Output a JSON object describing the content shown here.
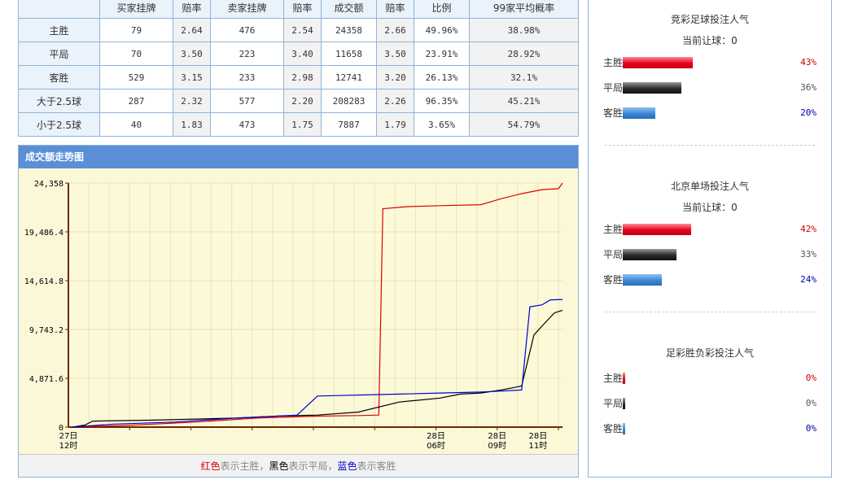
{
  "odds_table": {
    "headers": [
      "",
      "买家挂牌",
      "赔率",
      "卖家挂牌",
      "赔率",
      "成交额",
      "赔率",
      "比例",
      "99家平均概率"
    ],
    "rows": [
      [
        "主胜",
        "79",
        "2.64",
        "476",
        "2.54",
        "24358",
        "2.66",
        "49.96%",
        "38.98%"
      ],
      [
        "平局",
        "70",
        "3.50",
        "223",
        "3.40",
        "11658",
        "3.50",
        "23.91%",
        "28.92%"
      ],
      [
        "客胜",
        "529",
        "3.15",
        "233",
        "2.98",
        "12741",
        "3.20",
        "26.13%",
        "32.1%"
      ],
      [
        "大于2.5球",
        "287",
        "2.32",
        "577",
        "2.20",
        "208283",
        "2.26",
        "96.35%",
        "45.21%"
      ],
      [
        "小于2.5球",
        "40",
        "1.83",
        "473",
        "1.75",
        "7887",
        "1.79",
        "3.65%",
        "54.79%"
      ]
    ]
  },
  "trend": {
    "title": "成交额走势图",
    "legend": {
      "red": "红色",
      "t1": "表示主胜，",
      "black": "黑色",
      "t2": "表示平局，",
      "blue": "蓝色",
      "t3": "表示客胜"
    }
  },
  "chart_data": {
    "type": "line",
    "title": "成交额走势图",
    "xlabel": "",
    "ylabel": "",
    "ylim": [
      0,
      24358
    ],
    "y_ticks": [
      "0",
      "4,871.6",
      "9,743.2",
      "14,614.8",
      "19,486.4",
      "24,358"
    ],
    "x_tick_labels": [
      [
        "27日",
        "12时"
      ],
      [
        "28日",
        "06时"
      ],
      [
        "28日",
        "09时"
      ],
      [
        "28日",
        "11时"
      ]
    ],
    "x_tick_hours": [
      0,
      18,
      21,
      23
    ],
    "x_range_hours": [
      0,
      24.2
    ],
    "grid": true,
    "colors": {
      "red": "#e00000",
      "black": "#000000",
      "blue": "#0000cc"
    },
    "series": [
      {
        "color": "red",
        "points": [
          [
            0.2,
            0
          ],
          [
            3.2,
            200
          ],
          [
            6.2,
            500
          ],
          [
            9.2,
            900
          ],
          [
            12.2,
            1100
          ],
          [
            14.2,
            1150
          ],
          [
            15.2,
            1200
          ],
          [
            15.4,
            21800
          ],
          [
            16.6,
            22000
          ],
          [
            18.2,
            22100
          ],
          [
            20.2,
            22200
          ],
          [
            21.2,
            22800
          ],
          [
            22.2,
            23300
          ],
          [
            23.2,
            23700
          ],
          [
            24,
            23800
          ],
          [
            24.2,
            24358
          ]
        ]
      },
      {
        "color": "black",
        "points": [
          [
            0.2,
            0
          ],
          [
            0.8,
            200
          ],
          [
            1.2,
            600
          ],
          [
            4.2,
            700
          ],
          [
            6.2,
            800
          ],
          [
            8.2,
            900
          ],
          [
            10.2,
            1100
          ],
          [
            12.2,
            1200
          ],
          [
            14.2,
            1500
          ],
          [
            16.2,
            2500
          ],
          [
            18.2,
            2900
          ],
          [
            19.2,
            3300
          ],
          [
            20.2,
            3400
          ],
          [
            21.2,
            3700
          ],
          [
            22.2,
            4100
          ],
          [
            22.8,
            9200
          ],
          [
            23.2,
            10100
          ],
          [
            23.8,
            11400
          ],
          [
            24.2,
            11658
          ]
        ]
      },
      {
        "color": "blue",
        "points": [
          [
            0.2,
            0
          ],
          [
            2.2,
            300
          ],
          [
            5.2,
            500
          ],
          [
            8.2,
            900
          ],
          [
            10.2,
            1100
          ],
          [
            11.2,
            1200
          ],
          [
            12.2,
            3100
          ],
          [
            16.2,
            3300
          ],
          [
            18.2,
            3400
          ],
          [
            20.2,
            3500
          ],
          [
            21.2,
            3600
          ],
          [
            22.2,
            3700
          ],
          [
            22.6,
            12000
          ],
          [
            23.2,
            12200
          ],
          [
            23.6,
            12700
          ],
          [
            24.2,
            12741
          ]
        ]
      }
    ]
  },
  "sidebar": {
    "sections": [
      {
        "title": "竞彩足球投注人气",
        "handicap": "当前让球：0",
        "rows": [
          {
            "label": "主胜",
            "pct": "43%",
            "value": 43,
            "color": "red"
          },
          {
            "label": "平局",
            "pct": "36%",
            "value": 36,
            "color": "black"
          },
          {
            "label": "客胜",
            "pct": "20%",
            "value": 20,
            "color": "blue"
          }
        ]
      },
      {
        "title": "北京单场投注人气",
        "handicap": "当前让球：0",
        "rows": [
          {
            "label": "主胜",
            "pct": "42%",
            "value": 42,
            "color": "red"
          },
          {
            "label": "平局",
            "pct": "33%",
            "value": 33,
            "color": "black"
          },
          {
            "label": "客胜",
            "pct": "24%",
            "value": 24,
            "color": "blue"
          }
        ]
      },
      {
        "title": "足彩胜负彩投注人气",
        "rows": [
          {
            "label": "主胜",
            "pct": "0%",
            "value": 0,
            "color": "red"
          },
          {
            "label": "平局",
            "pct": "0%",
            "value": 0,
            "color": "black"
          },
          {
            "label": "客胜",
            "pct": "0%",
            "value": 0,
            "color": "blue"
          }
        ]
      }
    ]
  }
}
